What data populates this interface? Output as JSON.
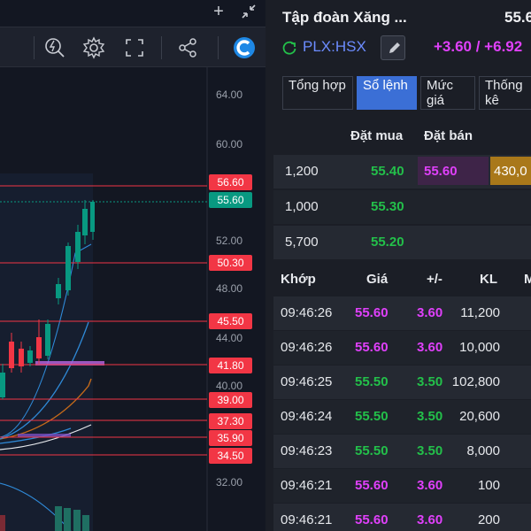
{
  "colors": {
    "up": "#23c04a",
    "ceiling": "#e040fb",
    "ref": "#f5c518",
    "accent": "#3b6fd6",
    "level_line": "#f23645",
    "current_price": "#089981"
  },
  "window": {
    "add_icon": "plus-icon",
    "collapse_icon": "collapse-icon"
  },
  "toolbar": {
    "icons": [
      "zoom-auto-icon",
      "gear-icon",
      "fullscreen-icon",
      "share-icon",
      "app-logo-icon"
    ]
  },
  "chart": {
    "axis_labels": [
      "64.00",
      "60.00",
      "52.00",
      "48.00",
      "44.00",
      "40.00",
      "32.00"
    ],
    "level_tags": [
      "56.60",
      "50.30",
      "45.50",
      "41.80",
      "39.00",
      "37.30",
      "35.90",
      "34.50"
    ],
    "current_price_tag": "55.60"
  },
  "stock": {
    "name": "Tập đoàn Xăng ...",
    "price": "55.6",
    "ticker": "PLX:HSX",
    "change": "+3.60 / +6.92"
  },
  "tabs": [
    {
      "label": "Tổng hợp",
      "active": false
    },
    {
      "label": "Sổ lệnh",
      "active": true
    },
    {
      "label": "Mức giá",
      "active": false
    },
    {
      "label": "Thống kê",
      "active": false
    }
  ],
  "order_book": {
    "headers": {
      "bid": "Đặt mua",
      "ask": "Đặt bán"
    },
    "rows": [
      {
        "bid_qty": "1,200",
        "bid_price": "55.40",
        "ask_price": "55.60",
        "ask_qty": "430,0"
      },
      {
        "bid_qty": "1,000",
        "bid_price": "55.30",
        "ask_price": "",
        "ask_qty": ""
      },
      {
        "bid_qty": "5,700",
        "bid_price": "55.20",
        "ask_price": "",
        "ask_qty": ""
      }
    ]
  },
  "trades": {
    "headers": {
      "time": "Khớp",
      "price": "Giá",
      "change": "+/-",
      "volume": "KL",
      "extra": "M"
    },
    "rows": [
      {
        "time": "09:46:26",
        "price": "55.60",
        "change": "3.60",
        "volume": "11,200",
        "type": "ceiling"
      },
      {
        "time": "09:46:26",
        "price": "55.60",
        "change": "3.60",
        "volume": "10,000",
        "type": "ceiling"
      },
      {
        "time": "09:46:25",
        "price": "55.50",
        "change": "3.50",
        "volume": "102,800",
        "type": "up"
      },
      {
        "time": "09:46:24",
        "price": "55.50",
        "change": "3.50",
        "volume": "20,600",
        "type": "up"
      },
      {
        "time": "09:46:23",
        "price": "55.50",
        "change": "3.50",
        "volume": "8,000",
        "type": "up"
      },
      {
        "time": "09:46:21",
        "price": "55.60",
        "change": "3.60",
        "volume": "100",
        "type": "ceiling"
      },
      {
        "time": "09:46:21",
        "price": "55.60",
        "change": "3.60",
        "volume": "200",
        "type": "ceiling"
      }
    ]
  }
}
